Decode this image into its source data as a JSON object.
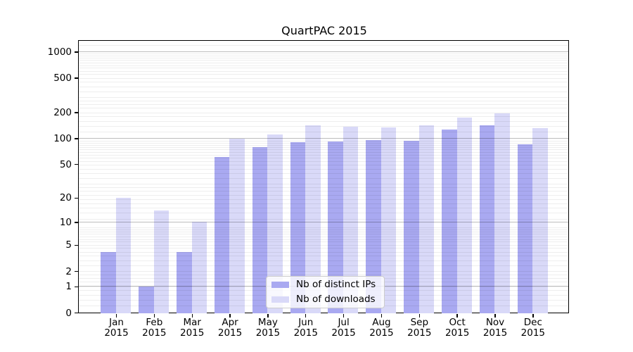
{
  "title": "QuartPAC 2015",
  "colors": {
    "bar_distinct_ips": "#a9a9f1",
    "bar_downloads": "#d9d9f8"
  },
  "chart_data": {
    "type": "bar",
    "title": "QuartPAC 2015",
    "categories": [
      "Jan 2015",
      "Feb 2015",
      "Mar 2015",
      "Apr 2015",
      "May 2015",
      "Jun 2015",
      "Jul 2015",
      "Aug 2015",
      "Sep 2015",
      "Oct 2015",
      "Nov 2015",
      "Dec 2015"
    ],
    "series": [
      {
        "name": "Nb of distinct IPs",
        "values": [
          4,
          1,
          4,
          60,
          79,
          90,
          91,
          95,
          93,
          126,
          140,
          85
        ]
      },
      {
        "name": "Nb of downloads",
        "values": [
          20,
          14,
          10,
          98,
          111,
          140,
          137,
          133,
          140,
          175,
          196,
          130
        ]
      }
    ],
    "xlabel": "",
    "ylabel": "",
    "yscale": "log10(1+x)",
    "yticks": [
      0,
      1,
      2,
      5,
      10,
      20,
      50,
      100,
      200,
      500,
      1000
    ],
    "ylim": [
      0,
      1320
    ],
    "grid": "on",
    "legend_position": "inside lower center"
  }
}
